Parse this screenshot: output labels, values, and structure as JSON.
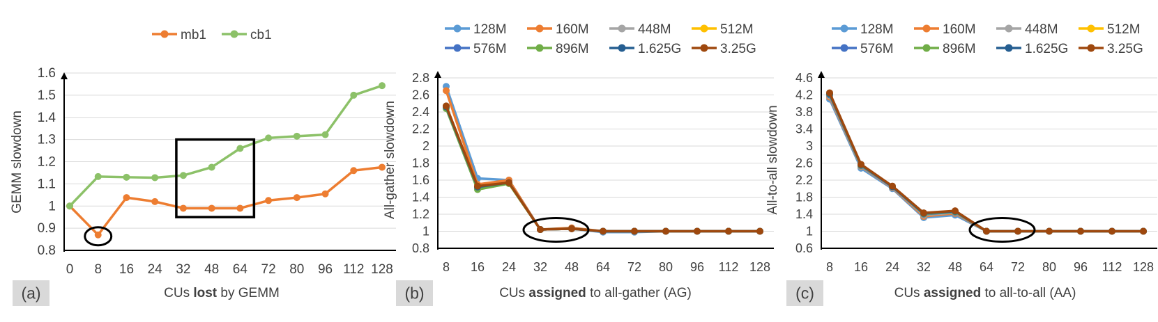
{
  "chart_data": [
    {
      "type": "line",
      "panel_label": "(a)",
      "xlabel_parts": [
        "CUs ",
        "lost",
        " by GEMM"
      ],
      "ylabel": "GEMM slowdown",
      "categories": [
        "0",
        "8",
        "16",
        "24",
        "32",
        "48",
        "64",
        "72",
        "80",
        "96",
        "112",
        "128"
      ],
      "ylim": [
        0.8,
        1.6
      ],
      "yticks": [
        "0.8",
        "0.9",
        "1",
        "1.1",
        "1.2",
        "1.3",
        "1.4",
        "1.5",
        "1.6"
      ],
      "legend_position": "top",
      "series": [
        {
          "name": "mb1",
          "color": "#ED7D31",
          "values": [
            1.0,
            0.87,
            1.038,
            1.02,
            0.99,
            0.99,
            0.99,
            1.025,
            1.038,
            1.055,
            1.16,
            1.175
          ]
        },
        {
          "name": "cb1",
          "color": "#8CC168",
          "values": [
            1.0,
            1.133,
            1.13,
            1.128,
            1.138,
            1.175,
            1.26,
            1.307,
            1.315,
            1.322,
            1.5,
            1.543
          ]
        }
      ],
      "annotations": [
        {
          "shape": "ellipse",
          "around_category": "8"
        },
        {
          "shape": "rectangle",
          "around_categories": [
            "32",
            "64"
          ]
        }
      ]
    },
    {
      "type": "line",
      "panel_label": "(b)",
      "xlabel_parts": [
        "CUs ",
        "assigned",
        " to all-gather (AG)"
      ],
      "ylabel": "All-gather slowdown",
      "categories": [
        "8",
        "16",
        "24",
        "32",
        "48",
        "64",
        "72",
        "80",
        "96",
        "112",
        "128"
      ],
      "ylim": [
        0.8,
        2.8
      ],
      "yticks": [
        "0.8",
        "1",
        "1.2",
        "1.4",
        "1.6",
        "1.8",
        "2",
        "2.2",
        "2.4",
        "2.6",
        "2.8"
      ],
      "legend_position": "top",
      "series": [
        {
          "name": "128M",
          "color": "#5B9BD5",
          "values": [
            2.7,
            1.62,
            1.6,
            1.02,
            1.03,
            0.99,
            0.99,
            1.0,
            1.0,
            1.0,
            1.0
          ]
        },
        {
          "name": "160M",
          "color": "#ED7D31",
          "values": [
            2.65,
            1.55,
            1.6,
            1.02,
            1.04,
            1.0,
            1.0,
            1.0,
            1.0,
            1.0,
            1.0
          ]
        },
        {
          "name": "448M",
          "color": "#A5A5A5",
          "values": [
            2.47,
            1.52,
            1.57,
            1.02,
            1.03,
            1.0,
            1.0,
            1.0,
            1.0,
            1.0,
            1.0
          ]
        },
        {
          "name": "512M",
          "color": "#FFC000",
          "values": [
            2.46,
            1.51,
            1.56,
            1.02,
            1.03,
            1.0,
            1.0,
            1.0,
            1.0,
            1.0,
            1.0
          ]
        },
        {
          "name": "576M",
          "color": "#4472C4",
          "values": [
            2.46,
            1.51,
            1.57,
            1.02,
            1.03,
            1.0,
            1.0,
            1.0,
            1.0,
            1.0,
            1.0
          ]
        },
        {
          "name": "896M",
          "color": "#70AD47",
          "values": [
            2.44,
            1.49,
            1.56,
            1.02,
            1.03,
            1.0,
            1.0,
            1.0,
            1.0,
            1.0,
            1.0
          ]
        },
        {
          "name": "1.625G",
          "color": "#255E91",
          "values": [
            2.46,
            1.52,
            1.57,
            1.02,
            1.03,
            1.0,
            1.0,
            1.0,
            1.0,
            1.0,
            1.0
          ]
        },
        {
          "name": "3.25G",
          "color": "#9E480E",
          "values": [
            2.47,
            1.53,
            1.57,
            1.02,
            1.03,
            1.0,
            1.0,
            1.0,
            1.0,
            1.0,
            1.0
          ]
        }
      ],
      "annotations": [
        {
          "shape": "ellipse",
          "around_categories": [
            "32",
            "48"
          ]
        }
      ]
    },
    {
      "type": "line",
      "panel_label": "(c)",
      "xlabel_parts": [
        "CUs ",
        "assigned",
        " to all-to-all (AA)"
      ],
      "ylabel": "All-to-all slowdown",
      "categories": [
        "8",
        "16",
        "24",
        "32",
        "48",
        "64",
        "72",
        "80",
        "96",
        "112",
        "128"
      ],
      "ylim": [
        0.6,
        4.6
      ],
      "yticks": [
        "0.6",
        "1",
        "1.4",
        "1.8",
        "2.2",
        "2.6",
        "3",
        "3.4",
        "3.8",
        "4.2",
        "4.6"
      ],
      "legend_position": "top",
      "series": [
        {
          "name": "128M",
          "color": "#5B9BD5",
          "values": [
            4.1,
            2.48,
            2.0,
            1.32,
            1.38,
            1.0,
            1.0,
            1.0,
            1.0,
            1.0,
            1.0
          ]
        },
        {
          "name": "160M",
          "color": "#ED7D31",
          "values": [
            4.15,
            2.52,
            2.02,
            1.35,
            1.42,
            1.0,
            1.0,
            1.0,
            1.0,
            1.0,
            1.0
          ]
        },
        {
          "name": "448M",
          "color": "#A5A5A5",
          "values": [
            4.18,
            2.53,
            2.03,
            1.38,
            1.44,
            1.0,
            1.0,
            1.0,
            1.0,
            1.0,
            1.0
          ]
        },
        {
          "name": "512M",
          "color": "#FFC000",
          "values": [
            4.2,
            2.54,
            2.04,
            1.4,
            1.45,
            1.0,
            1.0,
            1.0,
            1.0,
            1.0,
            1.0
          ]
        },
        {
          "name": "576M",
          "color": "#4472C4",
          "values": [
            4.2,
            2.54,
            2.04,
            1.4,
            1.45,
            1.0,
            1.0,
            1.0,
            1.0,
            1.0,
            1.0
          ]
        },
        {
          "name": "896M",
          "color": "#70AD47",
          "values": [
            4.22,
            2.55,
            2.05,
            1.41,
            1.46,
            1.0,
            1.0,
            1.0,
            1.0,
            1.0,
            1.0
          ]
        },
        {
          "name": "1.625G",
          "color": "#255E91",
          "values": [
            4.23,
            2.56,
            2.05,
            1.42,
            1.47,
            1.0,
            1.0,
            1.0,
            1.0,
            1.0,
            1.0
          ]
        },
        {
          "name": "3.25G",
          "color": "#9E480E",
          "values": [
            4.25,
            2.57,
            2.06,
            1.43,
            1.48,
            1.0,
            1.0,
            1.0,
            1.0,
            1.0,
            1.0
          ]
        }
      ],
      "annotations": [
        {
          "shape": "ellipse",
          "around_categories": [
            "64",
            "72"
          ]
        }
      ]
    }
  ]
}
